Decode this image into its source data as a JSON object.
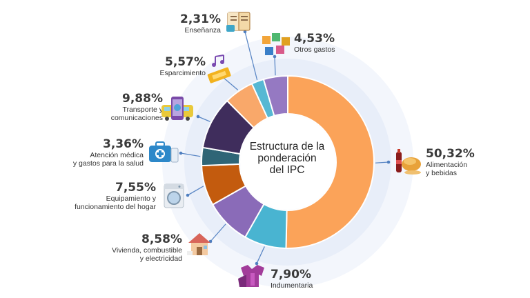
{
  "center_title": "Estructura de la ponderación del IPC",
  "colors": {
    "background_ring": "#eef2fb",
    "connector": "#5b87c5",
    "dot": "#4f7fc0"
  },
  "chart_data": {
    "type": "pie",
    "donut": true,
    "title": "Estructura de la ponderación del IPC",
    "unit": "%",
    "slices": [
      {
        "key": "alimentacion",
        "pct": "50,32%",
        "value": 50.32,
        "label": "Alimentación y bebidas",
        "label_lines": [
          "Alimentación",
          "y bebidas"
        ],
        "color": "#fba359",
        "icon": "food-icon"
      },
      {
        "key": "indumentaria",
        "pct": "7,90%",
        "value": 7.9,
        "label": "Indumentaria",
        "label_lines": [
          "Indumentaria"
        ],
        "color": "#49b4d1",
        "icon": "clothing-icon"
      },
      {
        "key": "vivienda",
        "pct": "8,58%",
        "value": 8.58,
        "label": "Vivienda, combustible y electricidad",
        "label_lines": [
          "Vivienda, combustible",
          "y electricidad"
        ],
        "color": "#8a6bb8",
        "icon": "house-icon"
      },
      {
        "key": "equipamiento",
        "pct": "7,55%",
        "value": 7.55,
        "label": "Equipamiento y funcionamiento del hogar",
        "label_lines": [
          "Equipamiento y",
          "funcionamiento del hogar"
        ],
        "color": "#c35b0e",
        "icon": "washing-machine-icon"
      },
      {
        "key": "atencion",
        "pct": "3,36%",
        "value": 3.36,
        "label": "Atención médica y gastos para la salud",
        "label_lines": [
          "Atención médica",
          "y gastos para la salud"
        ],
        "color": "#2f6576",
        "icon": "medical-kit-icon"
      },
      {
        "key": "transporte",
        "pct": "9,88%",
        "value": 9.88,
        "label": "Transporte y comunicaciones",
        "label_lines": [
          "Transporte y",
          "comunicaciones"
        ],
        "color": "#3f2d5c",
        "icon": "bus-phone-icon"
      },
      {
        "key": "esparcimiento",
        "pct": "5,57%",
        "value": 5.57,
        "label": "Esparcimiento",
        "label_lines": [
          "Esparcimiento"
        ],
        "color": "#f9a86a",
        "icon": "ticket-music-icon"
      },
      {
        "key": "ensenanza",
        "pct": "2,31%",
        "value": 2.31,
        "label": "Enseñanza",
        "label_lines": [
          "Enseñanza"
        ],
        "color": "#57b8d3",
        "icon": "book-icon"
      },
      {
        "key": "otros",
        "pct": "4,53%",
        "value": 4.53,
        "label": "Otros gastos",
        "label_lines": [
          "Otros gastos"
        ],
        "color": "#9579c2",
        "icon": "puzzle-icon"
      }
    ]
  }
}
